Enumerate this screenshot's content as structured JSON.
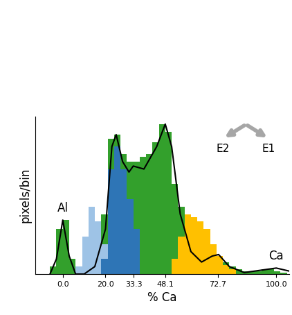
{
  "chart_data": {
    "type": "histogram",
    "xlabel": "% Ca",
    "ylabel": "pixels/bin",
    "bins": [
      -6,
      -3,
      0,
      3,
      6,
      9,
      12,
      15,
      18,
      21,
      24,
      27,
      30,
      33,
      36,
      39,
      42,
      45,
      48,
      51,
      54,
      57,
      60,
      63,
      66,
      69,
      72,
      75,
      78,
      81,
      84,
      87,
      90,
      93,
      96,
      99,
      102,
      105,
      108
    ],
    "series": [
      {
        "type": "histogram",
        "color": "#33a02c",
        "values": [
          5,
          30,
          36,
          10,
          2,
          0,
          0,
          0,
          40,
          90,
          93,
          80,
          75,
          75,
          78,
          80,
          88,
          100,
          95,
          60,
          45,
          35,
          30,
          25,
          20,
          15,
          10,
          8,
          5,
          3,
          2,
          2,
          2,
          3,
          3,
          2,
          1,
          0
        ]
      },
      {
        "type": "histogram",
        "color": "#9ec3e6",
        "values": [
          0,
          0,
          0,
          0,
          5,
          25,
          45,
          35,
          20,
          0,
          0,
          0,
          0,
          0,
          0,
          0,
          0,
          0,
          0,
          0,
          0,
          0,
          0,
          0,
          0,
          0,
          0,
          0,
          0,
          0,
          0,
          0,
          0,
          0,
          0,
          0,
          0,
          0
        ]
      },
      {
        "type": "histogram",
        "color": "#2e75b6",
        "values": [
          0,
          0,
          0,
          0,
          0,
          0,
          0,
          0,
          10,
          70,
          85,
          70,
          50,
          30,
          0,
          0,
          0,
          0,
          0,
          0,
          0,
          0,
          0,
          0,
          0,
          0,
          0,
          0,
          0,
          0,
          0,
          0,
          0,
          0,
          0,
          0,
          0,
          0
        ]
      },
      {
        "type": "histogram",
        "color": "#ffc000",
        "values": [
          0,
          0,
          0,
          0,
          0,
          0,
          0,
          0,
          0,
          0,
          0,
          0,
          0,
          0,
          0,
          0,
          0,
          0,
          0,
          10,
          25,
          40,
          38,
          35,
          30,
          20,
          12,
          6,
          3,
          0,
          0,
          0,
          0,
          0,
          0,
          0,
          0,
          0
        ]
      },
      {
        "type": "line",
        "color": "#000000",
        "line_style": "solid",
        "x": [
          -6,
          -3,
          0,
          3,
          6,
          10,
          15,
          20,
          23,
          25,
          28,
          31,
          33,
          38,
          44,
          48,
          51,
          55,
          60,
          65,
          70,
          73,
          78,
          85,
          95,
          100,
          106
        ],
        "values": [
          0,
          10,
          36,
          12,
          0,
          0,
          5,
          30,
          85,
          93,
          75,
          68,
          72,
          70,
          85,
          100,
          85,
          40,
          15,
          8,
          12,
          13,
          5,
          1,
          3,
          4,
          2
        ]
      }
    ],
    "xlim": [
      -13,
      106
    ],
    "xticks": [
      {
        "value": 0,
        "label": "0.0"
      },
      {
        "value": 20,
        "label": "20.0"
      },
      {
        "value": 33.3,
        "label": "33.3"
      },
      {
        "value": 48.1,
        "label": "48.1"
      },
      {
        "value": 72.7,
        "label": "72.7"
      },
      {
        "value": 100,
        "label": "100.0"
      }
    ],
    "ylim": [
      0,
      105
    ],
    "tick_labels": "x",
    "annotations": [
      {
        "text": "Al",
        "x": 0
      },
      {
        "text": "Ca",
        "x": 100
      }
    ],
    "direction_labels": [
      "E2",
      "E1"
    ]
  }
}
